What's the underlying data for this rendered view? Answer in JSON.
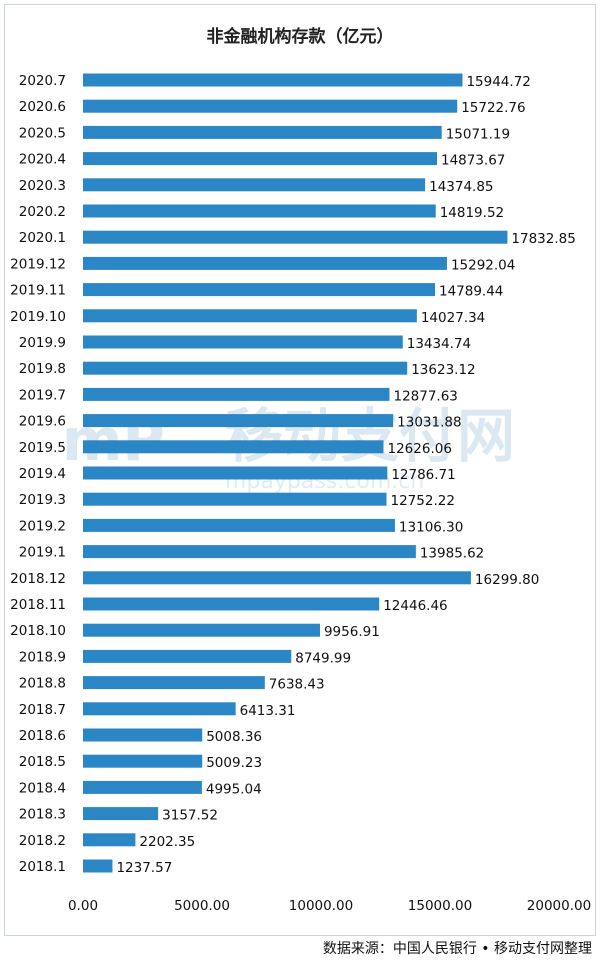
{
  "chart_data": {
    "type": "bar",
    "orientation": "horizontal",
    "title": "非金融机构存款（亿元）",
    "categories": [
      "2020.7",
      "2020.6",
      "2020.5",
      "2020.4",
      "2020.3",
      "2020.2",
      "2020.1",
      "2019.12",
      "2019.11",
      "2019.10",
      "2019.9",
      "2019.8",
      "2019.7",
      "2019.6",
      "2019.5",
      "2019.4",
      "2019.3",
      "2019.2",
      "2019.1",
      "2018.12",
      "2018.11",
      "2018.10",
      "2018.9",
      "2018.8",
      "2018.7",
      "2018.6",
      "2018.5",
      "2018.4",
      "2018.3",
      "2018.2",
      "2018.1"
    ],
    "values": [
      15944.72,
      15722.76,
      15071.19,
      14873.67,
      14374.85,
      14819.52,
      17832.85,
      15292.04,
      14789.44,
      14027.34,
      13434.74,
      13623.12,
      12877.63,
      13031.88,
      12626.06,
      12786.71,
      12752.22,
      13106.3,
      13985.62,
      16299.8,
      12446.46,
      9956.91,
      8749.99,
      7638.43,
      6413.31,
      5008.36,
      5009.23,
      4995.04,
      3157.52,
      2202.35,
      1237.57
    ],
    "value_labels": [
      "15944.72",
      "15722.76",
      "15071.19",
      "14873.67",
      "14374.85",
      "14819.52",
      "17832.85",
      "15292.04",
      "14789.44",
      "14027.34",
      "13434.74",
      "13623.12",
      "12877.63",
      "13031.88",
      "12626.06",
      "12786.71",
      "12752.22",
      "13106.30",
      "13985.62",
      "16299.80",
      "12446.46",
      "9956.91",
      "8749.99",
      "7638.43",
      "6413.31",
      "5008.36",
      "5009.23",
      "4995.04",
      "3157.52",
      "2202.35",
      "1237.57"
    ],
    "xlim": [
      0,
      20000
    ],
    "xticks": [
      0,
      5000,
      10000,
      15000,
      20000
    ],
    "xtick_labels": [
      "0.00",
      "5000.00",
      "10000.00",
      "15000.00",
      "20000.00"
    ],
    "xlabel": "",
    "ylabel": "",
    "grid": false,
    "bar_color": "#2a86c4",
    "source": "数据来源：中国人民银行 • 移动支付网整理"
  },
  "watermark": {
    "text": "移动支付网",
    "logo": "mP",
    "url": "mpaypass.com.cn"
  }
}
